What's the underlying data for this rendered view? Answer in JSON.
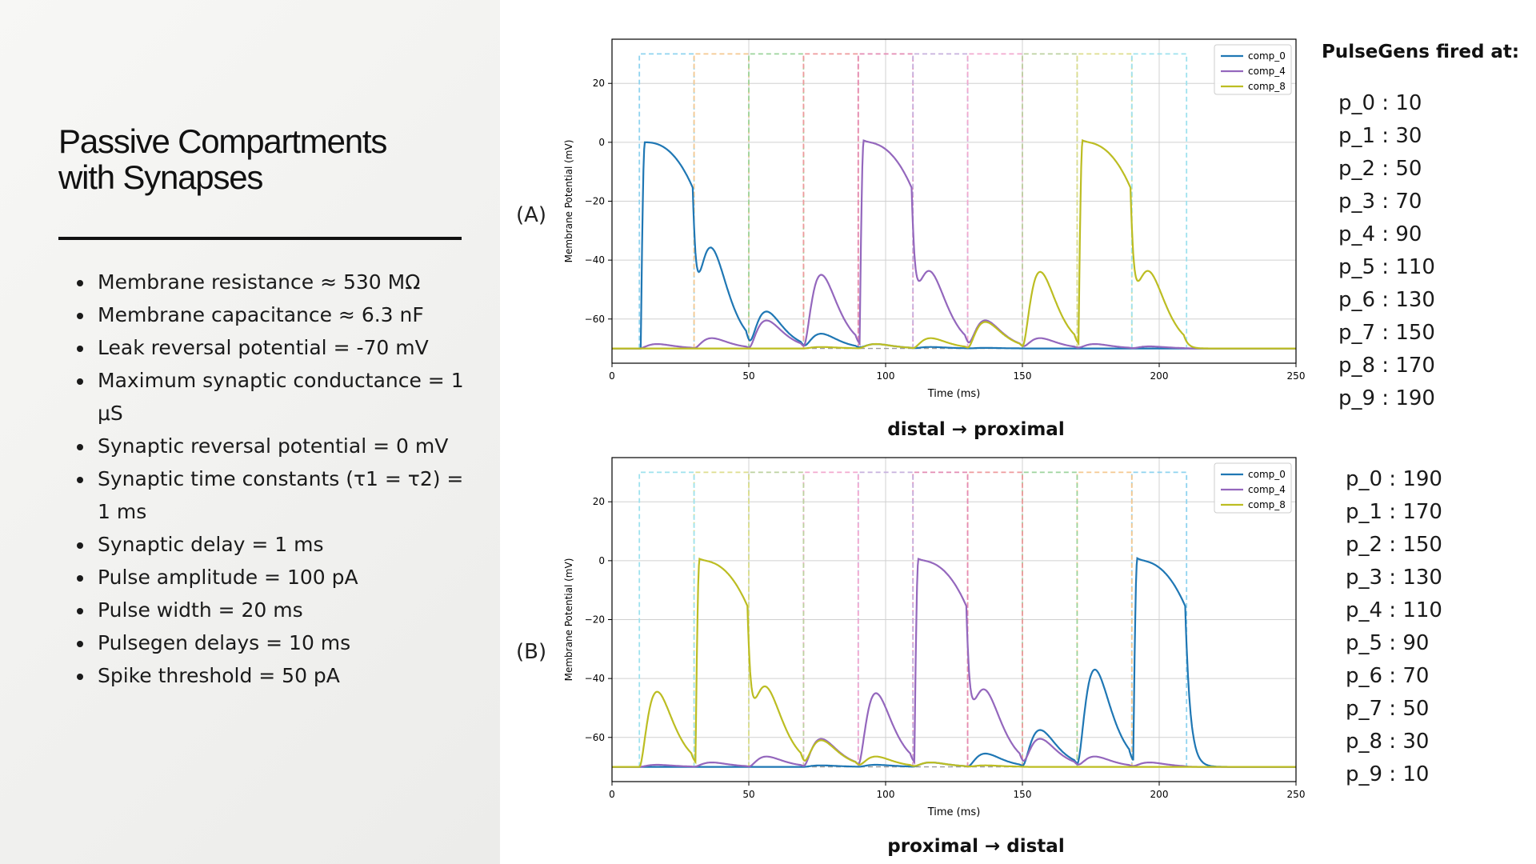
{
  "slide": {
    "title": "Passive Compartments\nwith Synapses",
    "parameters": [
      "Membrane resistance ≈ 530 MΩ",
      "Membrane capacitance ≈ 6.3 nF",
      "Leak reversal potential = -70 mV",
      "Maximum synaptic conductance = 1 μS",
      "Synaptic reversal potential = 0 mV",
      "Synaptic time constants (τ1 = τ2) = 1 ms",
      "Synaptic delay = 1 ms",
      "Pulse amplitude = 100 pA",
      "Pulse width = 20 ms",
      "Pulsegen delays = 10 ms",
      "Spike threshold = 50 pA"
    ]
  },
  "pulsegens": {
    "heading": "PulseGens fired at:",
    "panel_a": [
      "p_0 : 10",
      "p_1 : 30",
      "p_2 : 50",
      "p_3 : 70",
      "p_4 : 90",
      "p_5 : 110",
      "p_6 : 130",
      "p_7 : 150",
      "p_8 : 170",
      "p_9 : 190"
    ],
    "panel_b": [
      "p_0 : 190",
      "p_1 : 170",
      "p_2 : 150",
      "p_3 : 130",
      "p_4 : 110",
      "p_5 : 90",
      "p_6 : 70",
      "p_7 : 50",
      "p_8 : 30",
      "p_9 : 10"
    ]
  },
  "colors": {
    "comp_0": "#1f77b4",
    "comp_4": "#9467bd",
    "comp_8": "#bcbd22",
    "pulse_colors": [
      "#8fd3ef",
      "#f5c890",
      "#9cd49c",
      "#ee9a9c",
      "#e48cb4",
      "#c7b1de",
      "#f2a9cf",
      "#bdd1a0",
      "#dede8e",
      "#9ee2ee"
    ]
  },
  "chart_data": [
    {
      "type": "line",
      "panel_label": "(A)",
      "caption": "distal → proximal",
      "xlabel": "Time (ms)",
      "ylabel": "Membrane Potential (mV)",
      "xlim": [
        0,
        250
      ],
      "ylim": [
        -75,
        35
      ],
      "xticks": [
        0,
        50,
        100,
        150,
        200,
        250
      ],
      "yticks": [
        20,
        0,
        -20,
        -40,
        -60
      ],
      "grid": true,
      "legend": "top-right",
      "baseline": -70,
      "pulse_top": 30,
      "pulse_starts": [
        10,
        30,
        50,
        70,
        90,
        110,
        130,
        150,
        170,
        190
      ],
      "pulse_width": 20,
      "series": [
        {
          "name": "comp_0",
          "bumps": [
            {
              "t": 10.5,
              "peak": 0,
              "kind": "spike",
              "dur": 19
            },
            {
              "t": 30,
              "peak": -37
            },
            {
              "t": 50,
              "peak": -57.5
            },
            {
              "t": 70,
              "peak": -65
            },
            {
              "t": 90,
              "peak": -68.5
            },
            {
              "t": 110,
              "peak": -69.5
            },
            {
              "t": 130,
              "peak": -69.8
            }
          ]
        },
        {
          "name": "comp_4",
          "bumps": [
            {
              "t": 10,
              "peak": -68.5
            },
            {
              "t": 30,
              "peak": -66.5
            },
            {
              "t": 50,
              "peak": -60.5
            },
            {
              "t": 70,
              "peak": -45
            },
            {
              "t": 90.5,
              "peak": 0,
              "kind": "spike",
              "dur": 19
            },
            {
              "t": 110,
              "peak": -45
            },
            {
              "t": 130,
              "peak": -60.5
            },
            {
              "t": 150,
              "peak": -66.5
            },
            {
              "t": 170,
              "peak": -68.5
            },
            {
              "t": 190,
              "peak": -69.3
            }
          ]
        },
        {
          "name": "comp_8",
          "bumps": [
            {
              "t": 70,
              "peak": -69.5
            },
            {
              "t": 90,
              "peak": -68.5
            },
            {
              "t": 110,
              "peak": -66.5
            },
            {
              "t": 130,
              "peak": -61
            },
            {
              "t": 150,
              "peak": -44
            },
            {
              "t": 170.5,
              "peak": 0,
              "kind": "spike",
              "dur": 19
            },
            {
              "t": 190,
              "peak": -45
            }
          ]
        }
      ]
    },
    {
      "type": "line",
      "panel_label": "(B)",
      "caption": "proximal → distal",
      "xlabel": "Time (ms)",
      "ylabel": "Membrane Potential (mV)",
      "xlim": [
        0,
        250
      ],
      "ylim": [
        -75,
        35
      ],
      "xticks": [
        0,
        50,
        100,
        150,
        200,
        250
      ],
      "yticks": [
        20,
        0,
        -20,
        -40,
        -60
      ],
      "grid": true,
      "legend": "top-right",
      "baseline": -70,
      "pulse_top": 30,
      "pulse_starts": [
        190,
        170,
        150,
        130,
        110,
        90,
        70,
        50,
        30,
        10
      ],
      "pulse_width": 20,
      "series": [
        {
          "name": "comp_0",
          "bumps": [
            {
              "t": 70,
              "peak": -69.5
            },
            {
              "t": 90,
              "peak": -69.3
            },
            {
              "t": 110,
              "peak": -68.5
            },
            {
              "t": 130,
              "peak": -65.5
            },
            {
              "t": 150,
              "peak": -57.5
            },
            {
              "t": 170,
              "peak": -37
            },
            {
              "t": 190.5,
              "peak": 0,
              "kind": "spike",
              "dur": 19
            }
          ]
        },
        {
          "name": "comp_4",
          "bumps": [
            {
              "t": 10,
              "peak": -69.3
            },
            {
              "t": 30,
              "peak": -68.5
            },
            {
              "t": 50,
              "peak": -66.5
            },
            {
              "t": 70,
              "peak": -60.5
            },
            {
              "t": 90,
              "peak": -45
            },
            {
              "t": 110.5,
              "peak": 0,
              "kind": "spike",
              "dur": 19
            },
            {
              "t": 130,
              "peak": -45
            },
            {
              "t": 150,
              "peak": -60.5
            },
            {
              "t": 170,
              "peak": -66.5
            },
            {
              "t": 190,
              "peak": -68.5
            }
          ]
        },
        {
          "name": "comp_8",
          "bumps": [
            {
              "t": 10,
              "peak": -44.5
            },
            {
              "t": 30.5,
              "peak": 0,
              "kind": "spike",
              "dur": 19
            },
            {
              "t": 50,
              "peak": -44
            },
            {
              "t": 70,
              "peak": -61
            },
            {
              "t": 90,
              "peak": -66.5
            },
            {
              "t": 110,
              "peak": -68.5
            },
            {
              "t": 130,
              "peak": -69.5
            }
          ]
        }
      ]
    }
  ]
}
